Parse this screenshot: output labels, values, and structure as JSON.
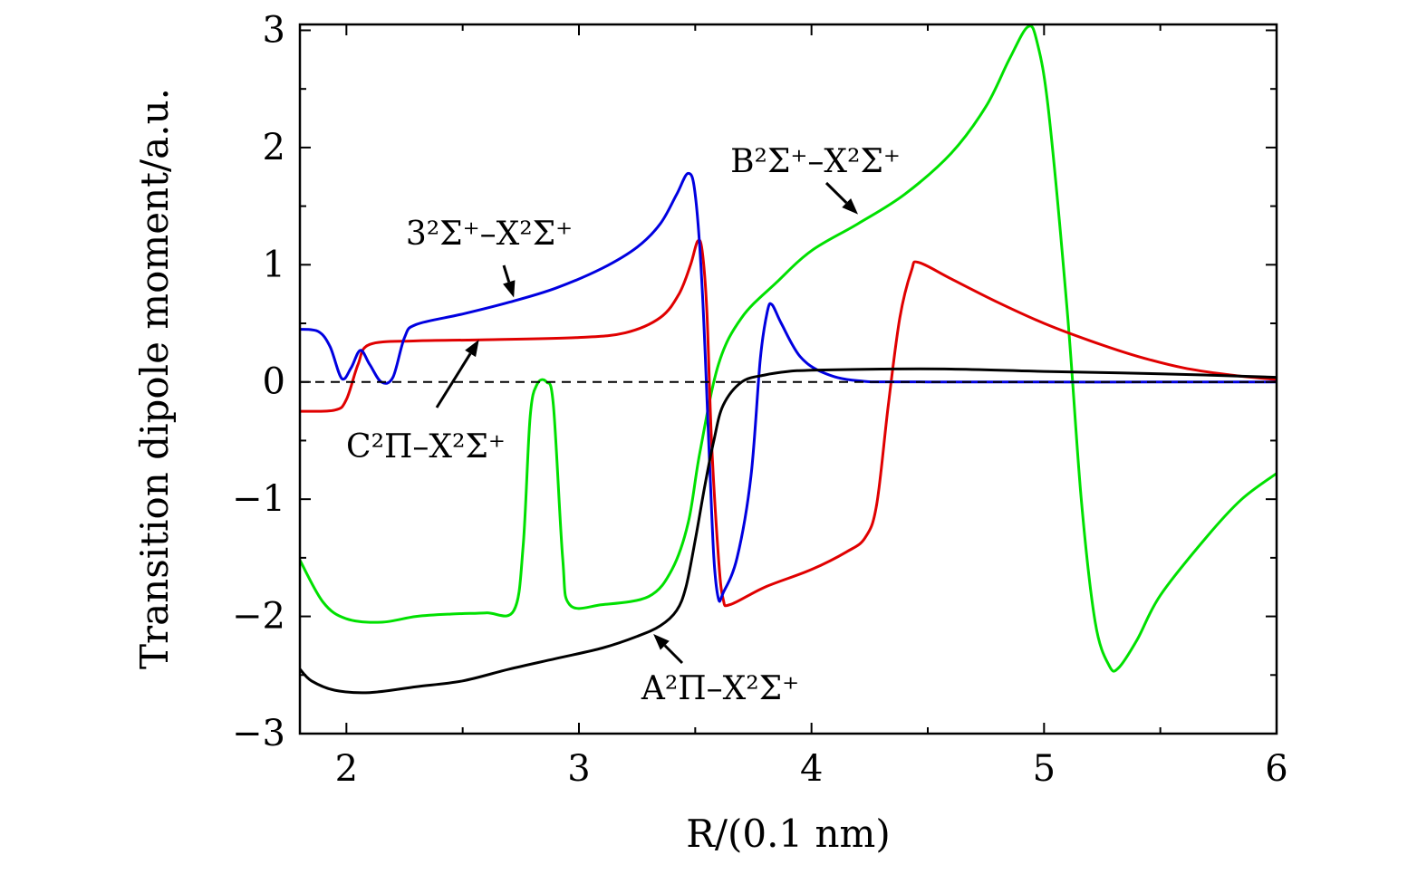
{
  "chart_data": {
    "type": "line",
    "xlabel": "R/(0.1 nm)",
    "ylabel": "Transition dipole moment/a.u.",
    "xlim": [
      1.8,
      6
    ],
    "ylim": [
      -3,
      3.05
    ],
    "xticks": [
      2,
      3,
      4,
      5,
      6
    ],
    "xtick_labels": [
      "2",
      "3",
      "4",
      "5",
      "6"
    ],
    "yticks": [
      -3,
      -2,
      -1,
      0,
      1,
      2,
      3
    ],
    "ytick_labels": [
      "−3",
      "−2",
      "−1",
      "0",
      "1",
      "2",
      "3"
    ],
    "grid": false,
    "reference_line": {
      "y": 0,
      "style": "dashed"
    },
    "series": [
      {
        "color": "#00e000",
        "points": [
          [
            1.8,
            -1.52
          ],
          [
            1.9,
            -1.88
          ],
          [
            2.0,
            -2.02
          ],
          [
            2.15,
            -2.05
          ],
          [
            2.3,
            -2.0
          ],
          [
            2.45,
            -1.98
          ],
          [
            2.6,
            -1.97
          ],
          [
            2.72,
            -1.95
          ],
          [
            2.76,
            -1.4
          ],
          [
            2.79,
            -0.3
          ],
          [
            2.82,
            -0.02
          ],
          [
            2.86,
            0.0
          ],
          [
            2.89,
            -0.2
          ],
          [
            2.93,
            -1.5
          ],
          [
            2.96,
            -1.9
          ],
          [
            3.1,
            -1.9
          ],
          [
            3.3,
            -1.83
          ],
          [
            3.4,
            -1.6
          ],
          [
            3.47,
            -1.2
          ],
          [
            3.52,
            -0.6
          ],
          [
            3.6,
            0.15
          ],
          [
            3.7,
            0.55
          ],
          [
            3.85,
            0.85
          ],
          [
            4.0,
            1.12
          ],
          [
            4.2,
            1.35
          ],
          [
            4.4,
            1.6
          ],
          [
            4.6,
            1.95
          ],
          [
            4.75,
            2.35
          ],
          [
            4.85,
            2.75
          ],
          [
            4.93,
            3.03
          ],
          [
            4.97,
            2.9
          ],
          [
            5.02,
            2.3
          ],
          [
            5.1,
            0.6
          ],
          [
            5.16,
            -1.0
          ],
          [
            5.22,
            -2.05
          ],
          [
            5.28,
            -2.42
          ],
          [
            5.32,
            -2.44
          ],
          [
            5.4,
            -2.2
          ],
          [
            5.5,
            -1.82
          ],
          [
            5.7,
            -1.32
          ],
          [
            5.85,
            -1.0
          ],
          [
            6.0,
            -0.78
          ]
        ],
        "annotation": "B²Σ⁺–X²Σ⁺",
        "annotation_target": [
          4.2,
          1.43
        ]
      },
      {
        "color": "#e00000",
        "points": [
          [
            1.8,
            -0.25
          ],
          [
            1.95,
            -0.24
          ],
          [
            2.0,
            -0.15
          ],
          [
            2.05,
            0.15
          ],
          [
            2.1,
            0.32
          ],
          [
            2.3,
            0.35
          ],
          [
            2.6,
            0.36
          ],
          [
            3.0,
            0.38
          ],
          [
            3.2,
            0.42
          ],
          [
            3.35,
            0.55
          ],
          [
            3.43,
            0.75
          ],
          [
            3.48,
            1.0
          ],
          [
            3.51,
            1.2
          ],
          [
            3.53,
            1.12
          ],
          [
            3.55,
            0.6
          ],
          [
            3.57,
            -0.5
          ],
          [
            3.6,
            -1.5
          ],
          [
            3.62,
            -1.85
          ],
          [
            3.65,
            -1.9
          ],
          [
            3.8,
            -1.75
          ],
          [
            4.0,
            -1.6
          ],
          [
            4.15,
            -1.45
          ],
          [
            4.23,
            -1.33
          ],
          [
            4.28,
            -1.05
          ],
          [
            4.33,
            -0.2
          ],
          [
            4.38,
            0.55
          ],
          [
            4.43,
            0.95
          ],
          [
            4.46,
            1.02
          ],
          [
            4.6,
            0.88
          ],
          [
            4.8,
            0.68
          ],
          [
            5.0,
            0.5
          ],
          [
            5.2,
            0.35
          ],
          [
            5.4,
            0.22
          ],
          [
            5.6,
            0.12
          ],
          [
            5.8,
            0.06
          ],
          [
            6.0,
            0.02
          ]
        ],
        "annotation": "C²Π–X²Σ⁺",
        "annotation_target": [
          2.57,
          0.36
        ]
      },
      {
        "color": "#0000e0",
        "points": [
          [
            1.8,
            0.45
          ],
          [
            1.88,
            0.43
          ],
          [
            1.93,
            0.3
          ],
          [
            1.98,
            0.03
          ],
          [
            2.02,
            0.12
          ],
          [
            2.06,
            0.27
          ],
          [
            2.1,
            0.15
          ],
          [
            2.15,
            0.0
          ],
          [
            2.2,
            0.04
          ],
          [
            2.25,
            0.38
          ],
          [
            2.3,
            0.49
          ],
          [
            2.5,
            0.58
          ],
          [
            2.7,
            0.68
          ],
          [
            2.9,
            0.8
          ],
          [
            3.1,
            0.97
          ],
          [
            3.25,
            1.15
          ],
          [
            3.35,
            1.35
          ],
          [
            3.42,
            1.6
          ],
          [
            3.47,
            1.78
          ],
          [
            3.5,
            1.6
          ],
          [
            3.53,
            0.8
          ],
          [
            3.56,
            -0.6
          ],
          [
            3.58,
            -1.5
          ],
          [
            3.6,
            -1.85
          ],
          [
            3.62,
            -1.8
          ],
          [
            3.68,
            -1.5
          ],
          [
            3.74,
            -0.8
          ],
          [
            3.78,
            0.2
          ],
          [
            3.81,
            0.6
          ],
          [
            3.83,
            0.66
          ],
          [
            3.87,
            0.5
          ],
          [
            3.95,
            0.22
          ],
          [
            4.05,
            0.08
          ],
          [
            4.2,
            0.01
          ],
          [
            4.5,
            0.0
          ],
          [
            6.0,
            0.0
          ]
        ],
        "annotation": "3²Σ⁺–X²Σ⁺",
        "annotation_target": [
          2.72,
          0.72
        ]
      },
      {
        "color": "#000000",
        "points": [
          [
            1.8,
            -2.45
          ],
          [
            1.85,
            -2.55
          ],
          [
            1.95,
            -2.63
          ],
          [
            2.1,
            -2.65
          ],
          [
            2.3,
            -2.6
          ],
          [
            2.5,
            -2.55
          ],
          [
            2.7,
            -2.45
          ],
          [
            2.9,
            -2.36
          ],
          [
            3.1,
            -2.27
          ],
          [
            3.25,
            -2.17
          ],
          [
            3.35,
            -2.08
          ],
          [
            3.42,
            -1.95
          ],
          [
            3.46,
            -1.75
          ],
          [
            3.5,
            -1.35
          ],
          [
            3.54,
            -0.9
          ],
          [
            3.58,
            -0.5
          ],
          [
            3.62,
            -0.2
          ],
          [
            3.7,
            0.0
          ],
          [
            3.8,
            0.06
          ],
          [
            3.9,
            0.09
          ],
          [
            4.0,
            0.1
          ],
          [
            4.3,
            0.11
          ],
          [
            4.6,
            0.11
          ],
          [
            5.0,
            0.09
          ],
          [
            5.5,
            0.07
          ],
          [
            6.0,
            0.04
          ]
        ],
        "annotation": "A²Π–X²Σ⁺",
        "annotation_target": [
          3.32,
          -2.15
        ]
      }
    ]
  }
}
